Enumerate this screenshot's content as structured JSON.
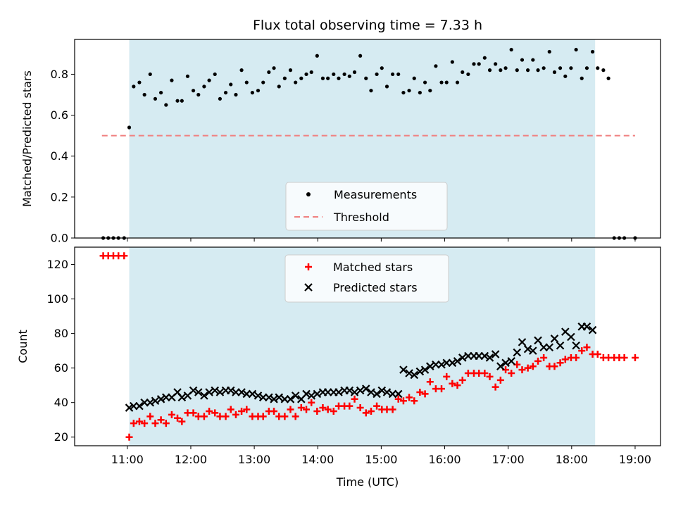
{
  "chart_data": {
    "type": "scatter",
    "title": "Flux total observing time = 7.33 h",
    "xlabel": "Time (UTC)",
    "x_unit": "hours",
    "xlim": [
      10.17,
      19.4
    ],
    "xticks": [
      11,
      12,
      13,
      14,
      15,
      16,
      17,
      18,
      19
    ],
    "xtick_labels": [
      "11:00",
      "12:00",
      "13:00",
      "14:00",
      "15:00",
      "16:00",
      "17:00",
      "18:00",
      "19:00"
    ],
    "observing_window": [
      11.03,
      18.37
    ],
    "shade_color": "#add8e6",
    "panels": [
      {
        "name": "ratio",
        "ylabel": "Matched/Predicted stars",
        "ylim": [
          0,
          0.97
        ],
        "yticks": [
          0.0,
          0.2,
          0.4,
          0.6,
          0.8
        ],
        "ytick_labels": [
          "0.0",
          "0.2",
          "0.4",
          "0.6",
          "0.8"
        ],
        "legend_position": "lower-center",
        "series": [
          {
            "name": "Measurements",
            "marker": "dot",
            "color": "#000000",
            "x": [
              10.62,
              10.7,
              10.78,
              10.86,
              10.95,
              11.03,
              11.1,
              11.19,
              11.27,
              11.36,
              11.44,
              11.53,
              11.61,
              11.7,
              11.79,
              11.86,
              11.95,
              12.04,
              12.12,
              12.21,
              12.29,
              12.38,
              12.46,
              12.55,
              12.63,
              12.71,
              12.8,
              12.88,
              12.97,
              13.06,
              13.14,
              13.23,
              13.31,
              13.39,
              13.48,
              13.57,
              13.65,
              13.74,
              13.82,
              13.9,
              13.99,
              14.08,
              14.16,
              14.25,
              14.33,
              14.42,
              14.5,
              14.58,
              14.67,
              14.76,
              14.84,
              14.93,
              15.01,
              15.09,
              15.18,
              15.27,
              15.35,
              15.44,
              15.52,
              15.61,
              15.69,
              15.77,
              15.86,
              15.95,
              16.03,
              16.12,
              16.2,
              16.28,
              16.37,
              16.46,
              16.54,
              16.63,
              16.71,
              16.8,
              16.88,
              16.96,
              17.05,
              17.14,
              17.22,
              17.31,
              17.39,
              17.47,
              17.56,
              17.65,
              17.73,
              17.82,
              17.9,
              17.99,
              18.07,
              18.16,
              18.24,
              18.33,
              18.41,
              18.5,
              18.58,
              18.67,
              18.75,
              18.83,
              19.0
            ],
            "y": [
              0.0,
              0.0,
              0.0,
              0.0,
              0.0,
              0.54,
              0.74,
              0.76,
              0.7,
              0.8,
              0.68,
              0.71,
              0.65,
              0.77,
              0.67,
              0.67,
              0.79,
              0.72,
              0.7,
              0.74,
              0.77,
              0.8,
              0.68,
              0.71,
              0.75,
              0.7,
              0.82,
              0.76,
              0.71,
              0.72,
              0.76,
              0.81,
              0.83,
              0.74,
              0.78,
              0.82,
              0.76,
              0.78,
              0.8,
              0.81,
              0.89,
              0.78,
              0.78,
              0.8,
              0.78,
              0.8,
              0.79,
              0.81,
              0.89,
              0.78,
              0.72,
              0.8,
              0.83,
              0.74,
              0.8,
              0.8,
              0.71,
              0.72,
              0.78,
              0.71,
              0.76,
              0.72,
              0.84,
              0.76,
              0.76,
              0.86,
              0.76,
              0.81,
              0.8,
              0.85,
              0.85,
              0.88,
              0.82,
              0.85,
              0.82,
              0.83,
              0.92,
              0.82,
              0.87,
              0.82,
              0.87,
              0.82,
              0.83,
              0.91,
              0.81,
              0.83,
              0.79,
              0.83,
              0.92,
              0.78,
              0.83,
              0.91,
              0.83,
              0.82,
              0.78,
              0.0,
              0.0,
              0.0,
              0.0
            ]
          },
          {
            "name": "Threshold",
            "marker": "dashed-line",
            "color": "#f08080",
            "x": [
              10.6,
              19.0
            ],
            "y": [
              0.5,
              0.5
            ]
          }
        ]
      },
      {
        "name": "counts",
        "ylabel": "Count",
        "ylim": [
          15,
          130
        ],
        "yticks": [
          20,
          40,
          60,
          80,
          100,
          120
        ],
        "ytick_labels": [
          "20",
          "40",
          "60",
          "80",
          "100",
          "120"
        ],
        "legend_position": "upper-center",
        "series": [
          {
            "name": "Matched stars",
            "marker": "plus",
            "color": "#ff0000",
            "x": [
              10.62,
              10.7,
              10.78,
              10.86,
              10.95,
              11.03,
              11.1,
              11.19,
              11.27,
              11.36,
              11.44,
              11.53,
              11.61,
              11.7,
              11.79,
              11.86,
              11.95,
              12.04,
              12.12,
              12.21,
              12.29,
              12.38,
              12.46,
              12.55,
              12.63,
              12.71,
              12.8,
              12.88,
              12.97,
              13.06,
              13.14,
              13.23,
              13.31,
              13.39,
              13.48,
              13.57,
              13.65,
              13.74,
              13.82,
              13.9,
              13.99,
              14.08,
              14.16,
              14.25,
              14.33,
              14.42,
              14.5,
              14.58,
              14.67,
              14.76,
              14.84,
              14.93,
              15.01,
              15.09,
              15.18,
              15.27,
              15.35,
              15.44,
              15.52,
              15.61,
              15.69,
              15.77,
              15.86,
              15.95,
              16.03,
              16.12,
              16.2,
              16.28,
              16.37,
              16.46,
              16.54,
              16.63,
              16.71,
              16.8,
              16.88,
              16.96,
              17.05,
              17.14,
              17.22,
              17.31,
              17.39,
              17.47,
              17.56,
              17.65,
              17.73,
              17.82,
              17.9,
              17.99,
              18.07,
              18.16,
              18.24,
              18.33,
              18.41,
              18.5,
              18.58,
              18.67,
              18.75,
              18.83,
              19.0
            ],
            "y": [
              125,
              125,
              125,
              125,
              125,
              20,
              28,
              29,
              28,
              32,
              28,
              30,
              28,
              33,
              31,
              29,
              34,
              34,
              32,
              32,
              35,
              34,
              32,
              32,
              36,
              33,
              35,
              36,
              32,
              32,
              32,
              35,
              35,
              32,
              32,
              36,
              32,
              37,
              36,
              40,
              35,
              37,
              36,
              35,
              38,
              38,
              38,
              42,
              37,
              34,
              35,
              38,
              36,
              36,
              36,
              42,
              41,
              43,
              41,
              46,
              45,
              52,
              48,
              48,
              55,
              51,
              50,
              53,
              57,
              57,
              57,
              57,
              55,
              49,
              53,
              59,
              57,
              62,
              59,
              60,
              61,
              64,
              66,
              61,
              61,
              63,
              65,
              66,
              66,
              70,
              72,
              68,
              68,
              66,
              66,
              66,
              66,
              66,
              66
            ]
          },
          {
            "name": "Predicted stars",
            "marker": "x",
            "color": "#000000",
            "x": [
              11.03,
              11.1,
              11.19,
              11.27,
              11.36,
              11.44,
              11.53,
              11.61,
              11.7,
              11.79,
              11.86,
              11.95,
              12.04,
              12.12,
              12.21,
              12.29,
              12.38,
              12.46,
              12.55,
              12.63,
              12.71,
              12.8,
              12.88,
              12.97,
              13.06,
              13.14,
              13.23,
              13.31,
              13.39,
              13.48,
              13.57,
              13.65,
              13.74,
              13.82,
              13.9,
              13.99,
              14.08,
              14.16,
              14.25,
              14.33,
              14.42,
              14.5,
              14.58,
              14.67,
              14.76,
              14.84,
              14.93,
              15.01,
              15.09,
              15.18,
              15.27,
              15.35,
              15.44,
              15.52,
              15.61,
              15.69,
              15.77,
              15.86,
              15.95,
              16.03,
              16.12,
              16.2,
              16.28,
              16.37,
              16.46,
              16.54,
              16.63,
              16.71,
              16.8,
              16.88,
              16.96,
              17.05,
              17.14,
              17.22,
              17.31,
              17.39,
              17.47,
              17.56,
              17.65,
              17.73,
              17.82,
              17.9,
              17.99,
              18.07,
              18.16,
              18.24,
              18.33
            ],
            "y": [
              37,
              38,
              38,
              40,
              40,
              41,
              42,
              43,
              43,
              46,
              43,
              44,
              47,
              46,
              44,
              46,
              47,
              46,
              47,
              47,
              46,
              46,
              45,
              45,
              44,
              43,
              43,
              42,
              43,
              42,
              42,
              44,
              42,
              45,
              44,
              45,
              46,
              46,
              46,
              46,
              47,
              47,
              46,
              47,
              48,
              46,
              45,
              47,
              46,
              45,
              45,
              59,
              57,
              56,
              58,
              59,
              61,
              62,
              62,
              63,
              63,
              64,
              66,
              67,
              67,
              67,
              67,
              66,
              68,
              61,
              63,
              64,
              69,
              75,
              71,
              70,
              76,
              72,
              72,
              77,
              73,
              81,
              78,
              73,
              84,
              84,
              82
            ]
          }
        ]
      }
    ]
  }
}
